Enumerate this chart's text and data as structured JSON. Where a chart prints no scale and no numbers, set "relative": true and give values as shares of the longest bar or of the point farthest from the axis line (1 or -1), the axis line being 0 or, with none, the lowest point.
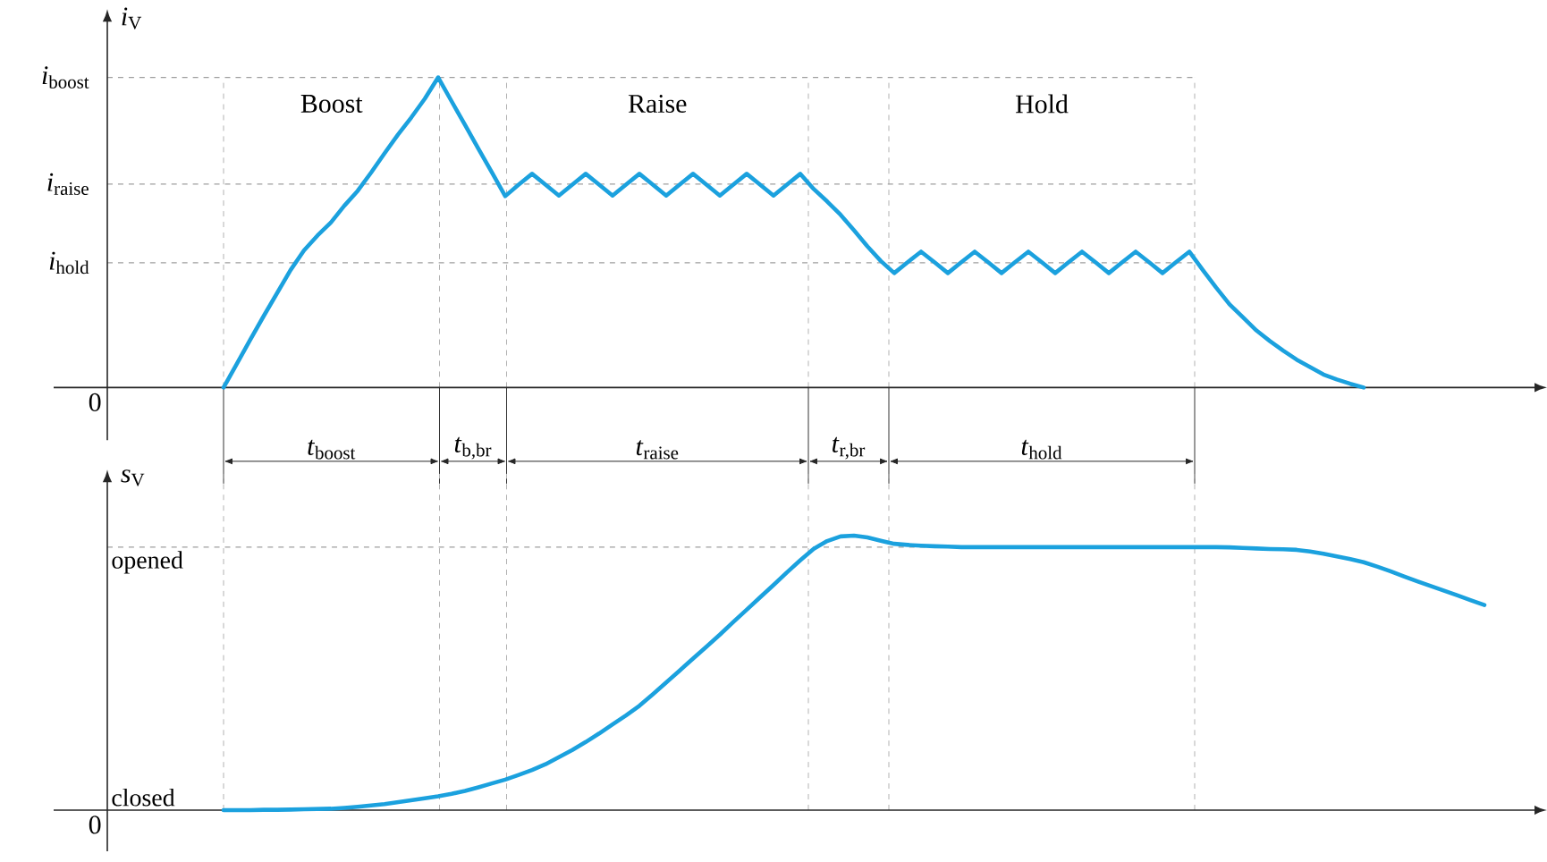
{
  "chart_data": [
    {
      "type": "line",
      "ylabel": "*i*$_{V}$",
      "relative": true,
      "marker": "none",
      "line_style": "solid",
      "color": "#1ba1de",
      "categories": [
        null,
        null,
        null,
        null,
        null,
        null,
        null,
        null,
        null,
        null,
        null,
        null,
        null,
        null,
        null,
        null,
        null,
        null,
        null,
        null,
        null,
        null,
        null,
        null,
        null,
        null,
        null,
        null,
        null,
        null,
        null,
        null,
        null,
        null,
        null,
        null,
        null,
        null,
        null,
        null,
        null,
        null,
        null,
        null,
        null,
        null,
        null,
        null,
        null,
        null,
        null,
        null,
        null,
        null,
        null,
        null,
        null,
        null,
        null,
        null,
        null,
        null,
        null,
        null,
        null,
        null,
        null,
        null,
        null,
        null,
        null,
        null,
        null,
        null,
        null,
        null,
        null,
        null,
        null,
        null,
        null,
        null,
        null,
        null,
        null,
        null
      ],
      "values": [
        0,
        0.077,
        0.155,
        0.231,
        0.305,
        0.379,
        0.442,
        0.49,
        0.532,
        0.586,
        0.634,
        0.693,
        0.755,
        0.815,
        0.871,
        0.931,
        1,
        0.923,
        0.847,
        0.77,
        0.694,
        0.617,
        0.654,
        0.689,
        0.654,
        0.619,
        0.654,
        0.689,
        0.654,
        0.619,
        0.654,
        0.689,
        0.654,
        0.619,
        0.654,
        0.689,
        0.654,
        0.619,
        0.654,
        0.689,
        0.654,
        0.619,
        0.654,
        0.689,
        0.64,
        0.6,
        0.557,
        0.507,
        0.455,
        0.408,
        0.369,
        0.404,
        0.438,
        0.404,
        0.369,
        0.404,
        0.438,
        0.404,
        0.369,
        0.404,
        0.438,
        0.404,
        0.369,
        0.404,
        0.438,
        0.404,
        0.369,
        0.404,
        0.438,
        0.404,
        0.369,
        0.404,
        0.438,
        0.379,
        0.322,
        0.268,
        0.226,
        0.184,
        0.15,
        0.119,
        0.09,
        0.066,
        0.042,
        0.026,
        0.012,
        0
      ],
      "ref_lines": [
        {
          "axis": "y",
          "value": 1,
          "label": "*i*$_{boost}$",
          "line_style": "dashed"
        },
        {
          "axis": "y",
          "value": 0.656,
          "label": "*i*$_{raise}$",
          "line_style": "dashed"
        },
        {
          "axis": "y",
          "value": 0.402,
          "label": "*i*$_{hold}$",
          "line_style": "dashed"
        }
      ],
      "grid": "x",
      "annotations": [
        "0",
        "*t*$_{boost}$",
        "*t*$_{b,br}$",
        "*t*$_{raise}$",
        "*t*$_{r,br}$",
        "*t*$_{hold}$",
        "Boost",
        "Raise",
        "Hold"
      ]
    },
    {
      "type": "line",
      "ylabel": "*s*$_{V}$",
      "relative": true,
      "marker": "none",
      "line_style": "solid",
      "color": "#1ba1de",
      "categories": [
        null,
        null,
        null,
        null,
        null,
        null,
        null,
        null,
        null,
        null,
        null,
        null,
        null,
        null,
        null,
        null,
        null,
        null,
        null,
        null,
        null,
        null,
        null,
        null,
        null,
        null,
        null,
        null,
        null,
        null,
        null,
        null,
        null,
        null,
        null,
        null,
        null,
        null,
        null,
        null,
        null,
        null,
        null,
        null,
        null,
        null,
        null,
        null,
        null,
        null,
        null,
        null,
        null,
        null,
        null,
        null,
        null,
        null,
        null,
        null,
        null,
        null,
        null,
        null,
        null,
        null,
        null,
        null,
        null,
        null,
        null,
        null,
        null,
        null,
        null,
        null,
        null,
        null,
        null,
        null,
        null,
        null,
        null,
        null,
        null,
        null,
        null,
        null,
        null,
        null,
        null,
        null,
        null,
        null,
        null
      ],
      "values": [
        0,
        0,
        0,
        0.001,
        0.001,
        0.002,
        0.003,
        0.004,
        0.005,
        0.008,
        0.012,
        0.017,
        0.022,
        0.029,
        0.036,
        0.043,
        0.05,
        0.059,
        0.07,
        0.083,
        0.097,
        0.111,
        0.128,
        0.146,
        0.167,
        0.193,
        0.219,
        0.248,
        0.279,
        0.312,
        0.345,
        0.38,
        0.422,
        0.465,
        0.508,
        0.552,
        0.595,
        0.639,
        0.685,
        0.73,
        0.775,
        0.82,
        0.866,
        0.91,
        0.952,
        0.98,
        0.997,
        1,
        0.993,
        0.981,
        0.97,
        0.966,
        0.963,
        0.961,
        0.96,
        0.958,
        0.958,
        0.958,
        0.958,
        0.958,
        0.958,
        0.958,
        0.958,
        0.958,
        0.958,
        0.958,
        0.958,
        0.958,
        0.958,
        0.958,
        0.958,
        0.958,
        0.958,
        0.958,
        0.958,
        0.957,
        0.955,
        0.953,
        0.951,
        0.95,
        0.948,
        0.942,
        0.934,
        0.924,
        0.914,
        0.903,
        0.887,
        0.87,
        0.851,
        0.833,
        0.816,
        0.799,
        0.782,
        0.764,
        0.747
      ],
      "ref_lines": [
        {
          "axis": "y",
          "value": 0.958,
          "label": "opened",
          "line_style": "dashed"
        },
        {
          "axis": "y",
          "value": 0,
          "label": "closed"
        }
      ],
      "grid": "x",
      "annotations": [
        "0"
      ]
    }
  ]
}
